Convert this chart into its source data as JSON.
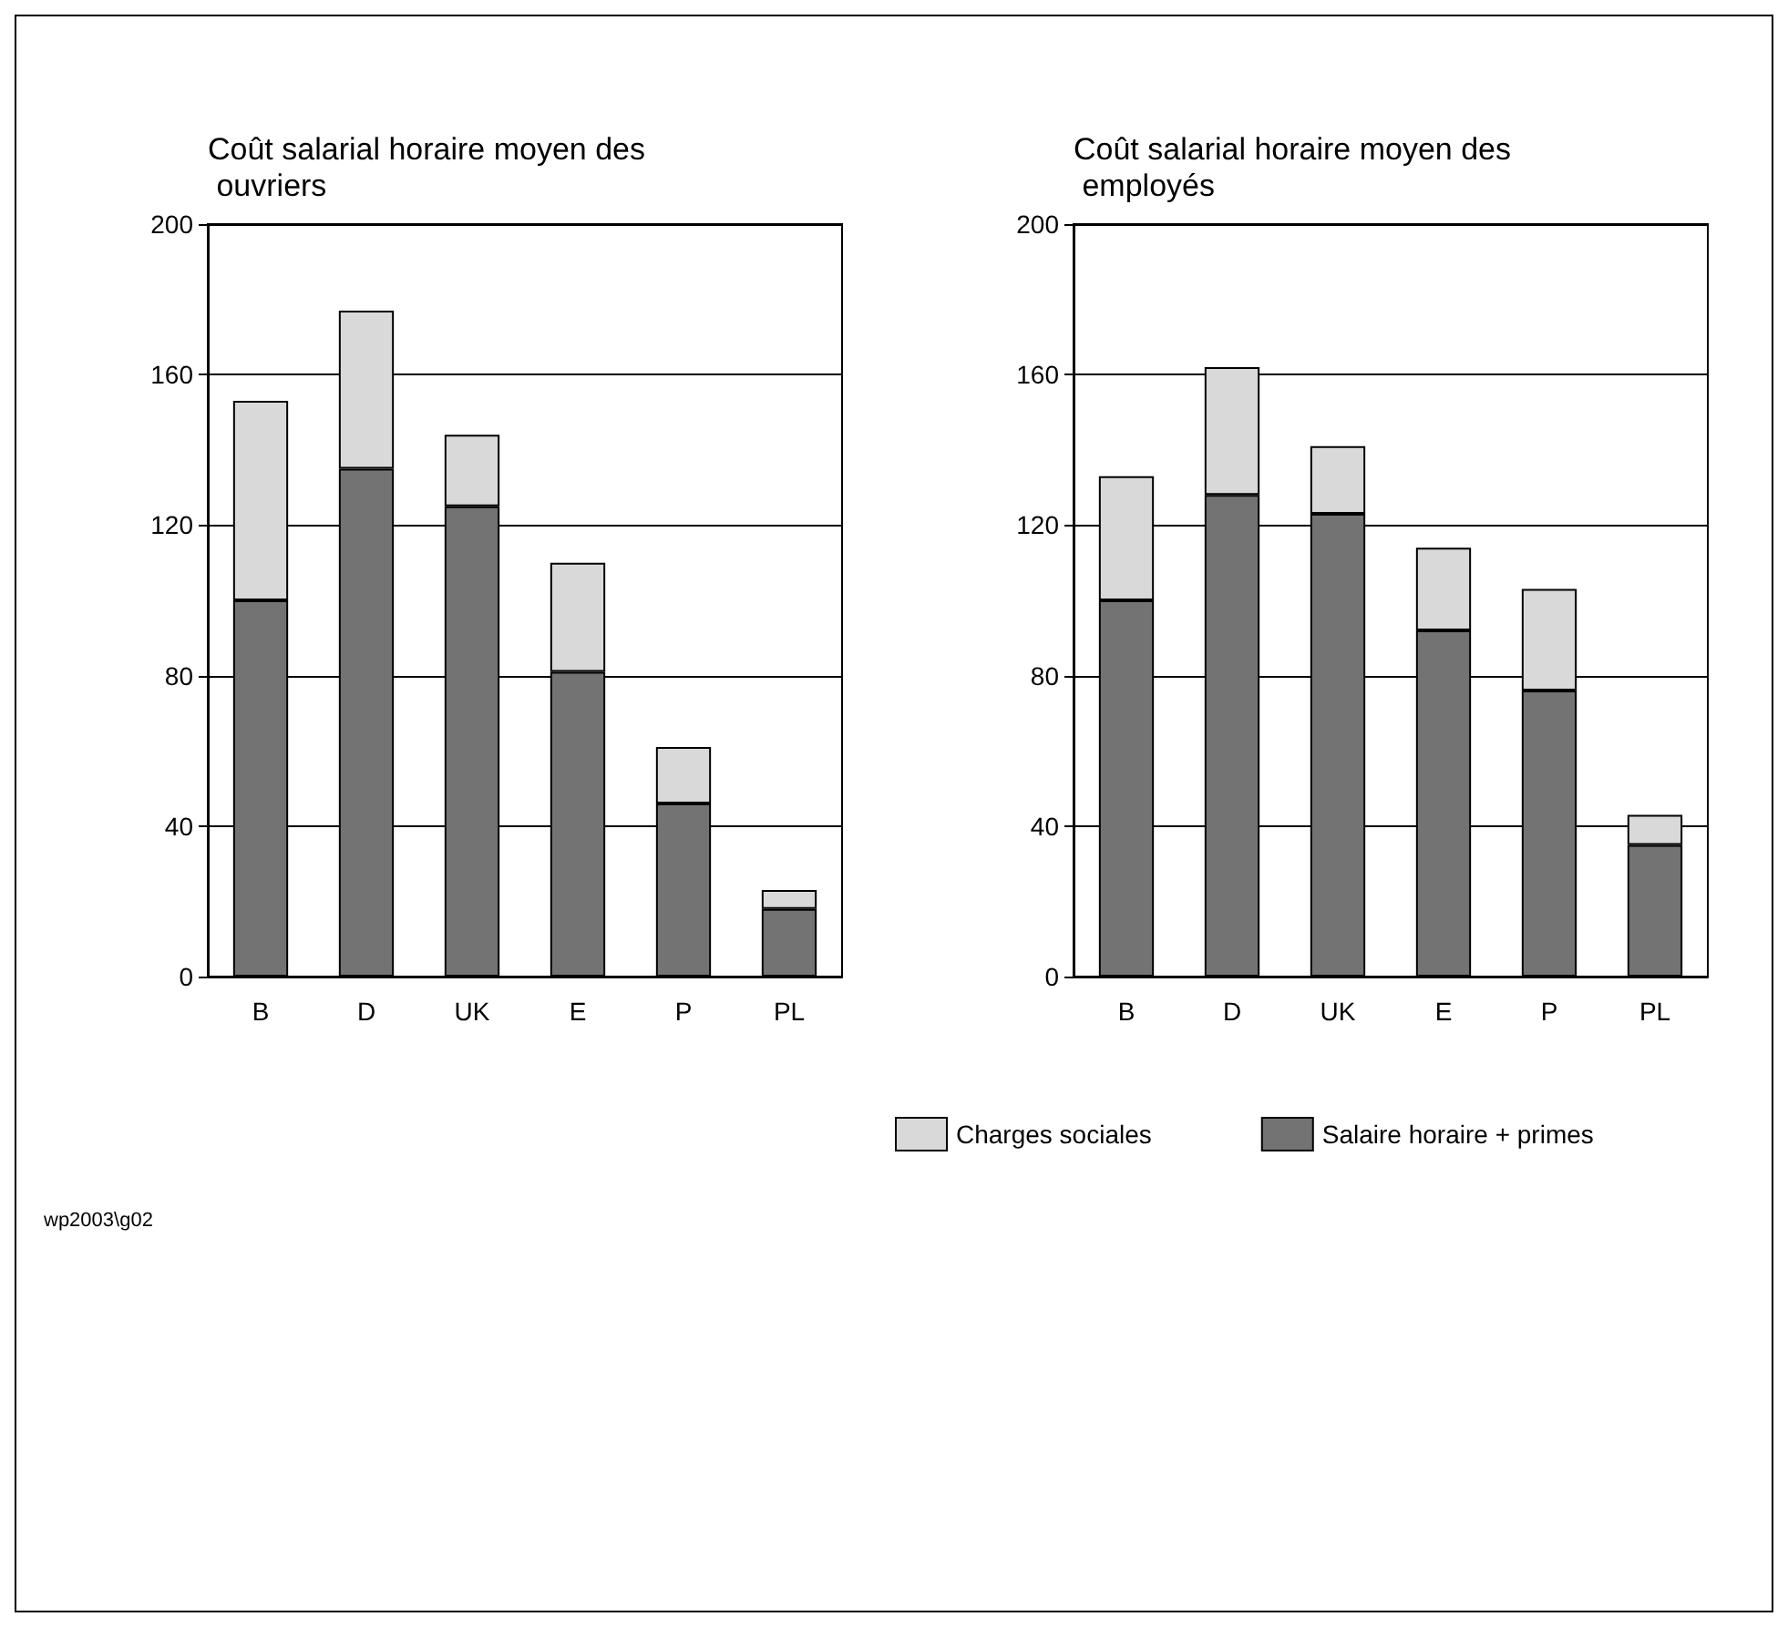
{
  "chart_data": [
    {
      "type": "bar",
      "title": "Coût salarial horaire moyen des ouvriers",
      "categories": [
        "B",
        "D",
        "UK",
        "E",
        "P",
        "PL"
      ],
      "stacked": true,
      "ylim": [
        0,
        200
      ],
      "yticks": [
        0,
        40,
        80,
        120,
        160,
        200
      ],
      "grid": "y",
      "legend": false,
      "annotations": [
        "wp2003\\g02"
      ],
      "series": [
        {
          "color": "#737373",
          "values": [
            100,
            135,
            125,
            81,
            46,
            18
          ]
        },
        {
          "color": "#d9d9d9",
          "values": [
            53,
            42,
            19,
            29,
            15,
            5
          ]
        }
      ]
    },
    {
      "type": "bar",
      "title": "Coût salarial horaire moyen des employés",
      "categories": [
        "B",
        "D",
        "UK",
        "E",
        "P",
        "PL"
      ],
      "stacked": true,
      "ylim": [
        0,
        200
      ],
      "yticks": [
        0,
        40,
        80,
        120,
        160,
        200
      ],
      "grid": "y",
      "legend": "bottom",
      "series": [
        {
          "name": "Salaire horaire + primes",
          "color": "#737373",
          "values": [
            100,
            128,
            123,
            92,
            76,
            35
          ]
        },
        {
          "name": "Charges sociales",
          "color": "#d9d9d9",
          "values": [
            33,
            34,
            18,
            22,
            27,
            8
          ]
        }
      ]
    }
  ]
}
